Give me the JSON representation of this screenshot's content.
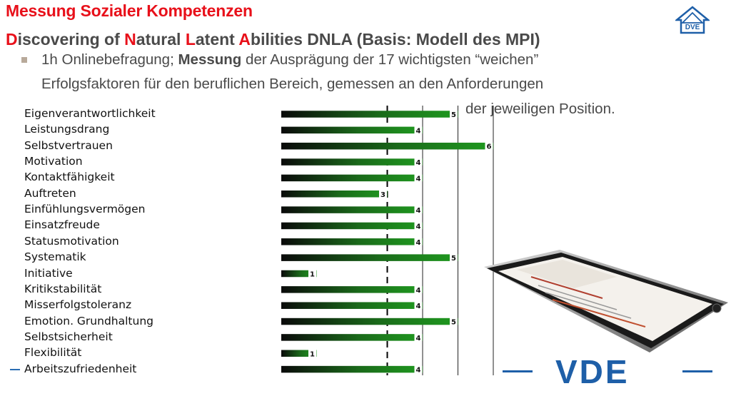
{
  "slide": {
    "title_line1": "Messung Sozialer Kompetenzen",
    "title_line2_parts": [
      {
        "text": "D",
        "accent": true
      },
      {
        "text": "iscovering of ",
        "accent": false
      },
      {
        "text": "N",
        "accent": true
      },
      {
        "text": "atural ",
        "accent": false
      },
      {
        "text": "L",
        "accent": true
      },
      {
        "text": "atent ",
        "accent": false
      },
      {
        "text": "A",
        "accent": true
      },
      {
        "text": "bilities DNLA (Basis: Modell des MPI)",
        "accent": false
      }
    ],
    "bullet_line1_pre": "1h Onlinebefragung; ",
    "bullet_line1_bold": "Messung",
    "bullet_line1_post": " der Ausprägung der 17 wichtigsten “weichen”",
    "bullet_line2": "Erfolgsfaktoren für den beruflichen Bereich, gemessen an den Anforderungen",
    "bullet_line3": "der jeweiligen Position.",
    "logo_text": "VDE",
    "colors": {
      "accent": "#e8101a",
      "brand_blue": "#1e5fa8",
      "bar_green": "#1f9a1f",
      "bar_dark": "#0a0a0a"
    },
    "icons": [
      "vde-house-logo-icon",
      "smartphone-image-icon"
    ]
  },
  "chart_data": {
    "type": "bar",
    "orientation": "horizontal",
    "categories": [
      "Eigenverantwortlichkeit",
      "Leistungsdrang",
      "Selbstvertrauen",
      "Motivation",
      "Kontaktfähigkeit",
      "Auftreten",
      "Einfühlungsvermögen",
      "Einsatzfreude",
      "Statusmotivation",
      "Systematik",
      "Initiative",
      "Kritikstabilität",
      "Misserfolgstoleranz",
      "Emotion. Grundhaltung",
      "Selbstsicherheit",
      "Flexibilität",
      "Arbeitszufriedenheit"
    ],
    "values": [
      5,
      4,
      6,
      4,
      4,
      3,
      4,
      4,
      4,
      5,
      1,
      4,
      4,
      5,
      4,
      1,
      4
    ],
    "xlim": [
      0,
      6
    ],
    "reference_line": 3,
    "grid": "vertical lines at 3, 4, 5, 6",
    "data_labels": true
  }
}
